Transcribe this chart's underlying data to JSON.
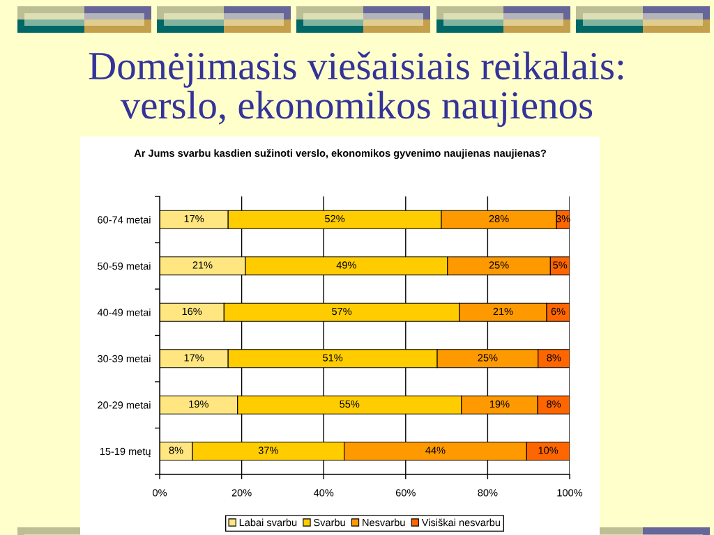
{
  "chart_data": {
    "type": "bar",
    "orientation": "horizontal",
    "stacked": true,
    "title": "Domėjimasis viešaisiais reikalais: verslo, ekonomikos naujienos",
    "subtitle": "Ar Jums svarbu kasdien sužinoti verslo, ekonomikos gyvenimo naujienas naujienas?",
    "categories": [
      "60-74 metai",
      "50-59 metai",
      "40-49 metai",
      "30-39 metai",
      "20-29 metai",
      "15-19 metų"
    ],
    "series": [
      {
        "name": "Labai svarbu",
        "color": "#ffe680",
        "values": [
          16.7,
          20.9,
          15.7,
          16.7,
          19.0,
          8.0
        ],
        "value_labels": [
          "17%",
          "21%",
          "16%",
          "17%",
          "19%",
          "8%"
        ]
      },
      {
        "name": "Svarbu",
        "color": "#ffcc00",
        "values": [
          52.0,
          49.3,
          57.4,
          51.0,
          54.6,
          37.0
        ],
        "value_labels": [
          "52%",
          "49%",
          "57%",
          "51%",
          "55%",
          "37%"
        ]
      },
      {
        "name": "Nesvarbu",
        "color": "#ff9900",
        "values": [
          28.1,
          25.1,
          21.3,
          24.6,
          18.6,
          44.5
        ],
        "value_labels": [
          "28%",
          "25%",
          "21%",
          "25%",
          "19%",
          "44%"
        ]
      },
      {
        "name": "Visiškai nesvarbu",
        "color": "#ff6600",
        "values": [
          3.2,
          4.7,
          5.6,
          7.7,
          7.8,
          10.5
        ],
        "value_labels": [
          "3%",
          "5%",
          "6%",
          "8%",
          "8%",
          "10%"
        ]
      }
    ],
    "xlim": [
      0,
      100
    ],
    "xticks": [
      {
        "value": 0,
        "label": "0%"
      },
      {
        "value": 20,
        "label": "20%"
      },
      {
        "value": 40,
        "label": "40%"
      },
      {
        "value": 60,
        "label": "60%"
      },
      {
        "value": 80,
        "label": "80%"
      },
      {
        "value": 100,
        "label": "100%"
      }
    ],
    "grid": "x",
    "legend": "bottom"
  }
}
